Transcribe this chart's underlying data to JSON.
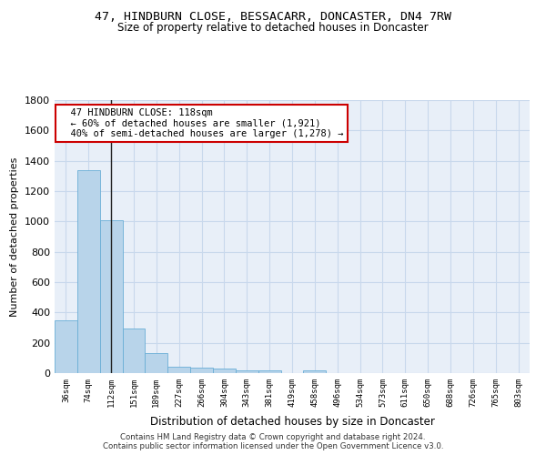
{
  "title1": "47, HINDBURN CLOSE, BESSACARR, DONCASTER, DN4 7RW",
  "title2": "Size of property relative to detached houses in Doncaster",
  "xlabel": "Distribution of detached houses by size in Doncaster",
  "ylabel": "Number of detached properties",
  "footnote": "Contains HM Land Registry data © Crown copyright and database right 2024.\nContains public sector information licensed under the Open Government Licence v3.0.",
  "bar_labels": [
    "36sqm",
    "74sqm",
    "112sqm",
    "151sqm",
    "189sqm",
    "227sqm",
    "266sqm",
    "304sqm",
    "343sqm",
    "381sqm",
    "419sqm",
    "458sqm",
    "496sqm",
    "534sqm",
    "573sqm",
    "611sqm",
    "650sqm",
    "688sqm",
    "726sqm",
    "765sqm",
    "803sqm"
  ],
  "bar_values": [
    350,
    1340,
    1010,
    295,
    130,
    40,
    38,
    30,
    20,
    18,
    0,
    20,
    0,
    0,
    0,
    0,
    0,
    0,
    0,
    0,
    0
  ],
  "bar_color": "#b8d4ea",
  "bar_edge_color": "#6aaed6",
  "vline_x_index": 2,
  "vline_color": "#222222",
  "annotation_text": "  47 HINDBURN CLOSE: 118sqm\n  ← 60% of detached houses are smaller (1,921)\n  40% of semi-detached houses are larger (1,278) →",
  "annotation_box_color": "#ffffff",
  "annotation_box_edge": "#cc0000",
  "ylim": [
    0,
    1800
  ],
  "yticks": [
    0,
    200,
    400,
    600,
    800,
    1000,
    1200,
    1400,
    1600,
    1800
  ],
  "grid_color": "#c8d8ec",
  "background_color": "#e8eff8",
  "title_fontsize": 9.5,
  "subtitle_fontsize": 8.5,
  "bar_width": 1.0
}
